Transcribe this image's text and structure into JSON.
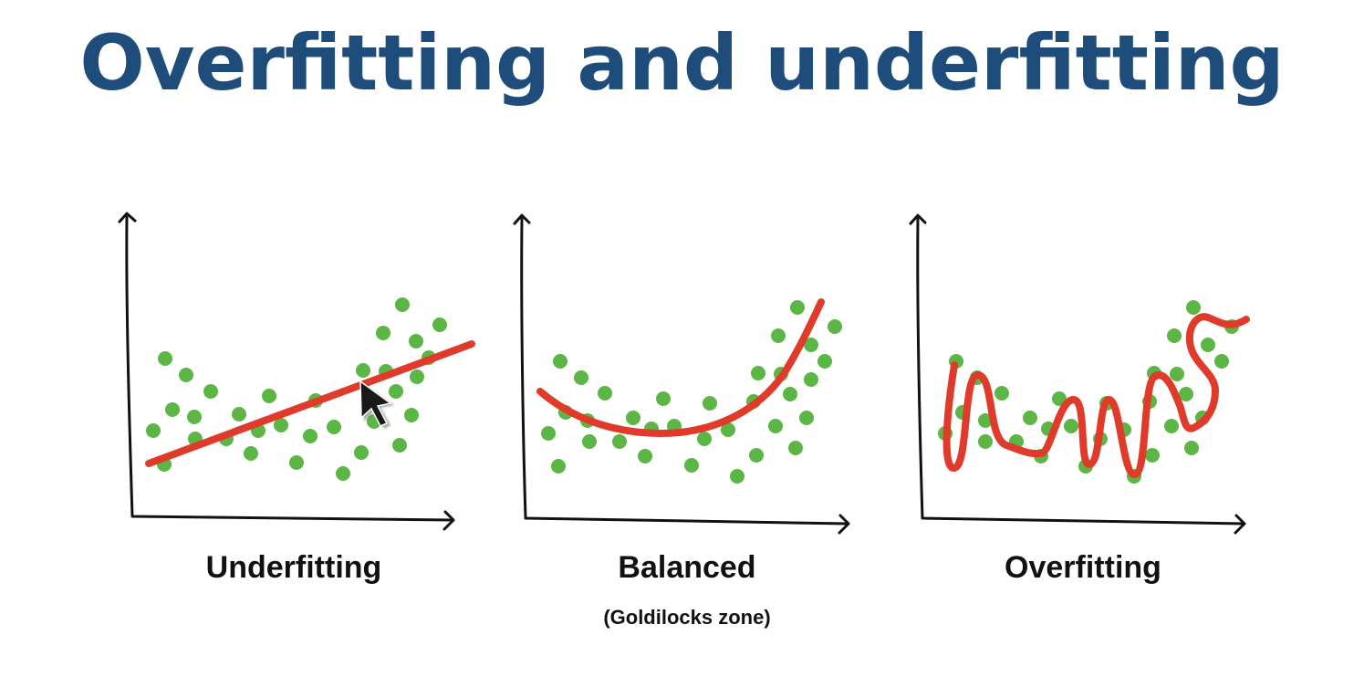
{
  "title": "Overfitting and underfitting",
  "colors": {
    "title": "#1e4d7b",
    "points": "#5cb646",
    "curve": "#e03a2a",
    "axes": "#111111"
  },
  "panels": [
    {
      "label": "Underfitting",
      "sublabel": ""
    },
    {
      "label": "Balanced",
      "sublabel": "(Goldilocks zone)"
    },
    {
      "label": "Overfitting",
      "sublabel": ""
    }
  ],
  "cursor": "arrow-pointer-icon"
}
